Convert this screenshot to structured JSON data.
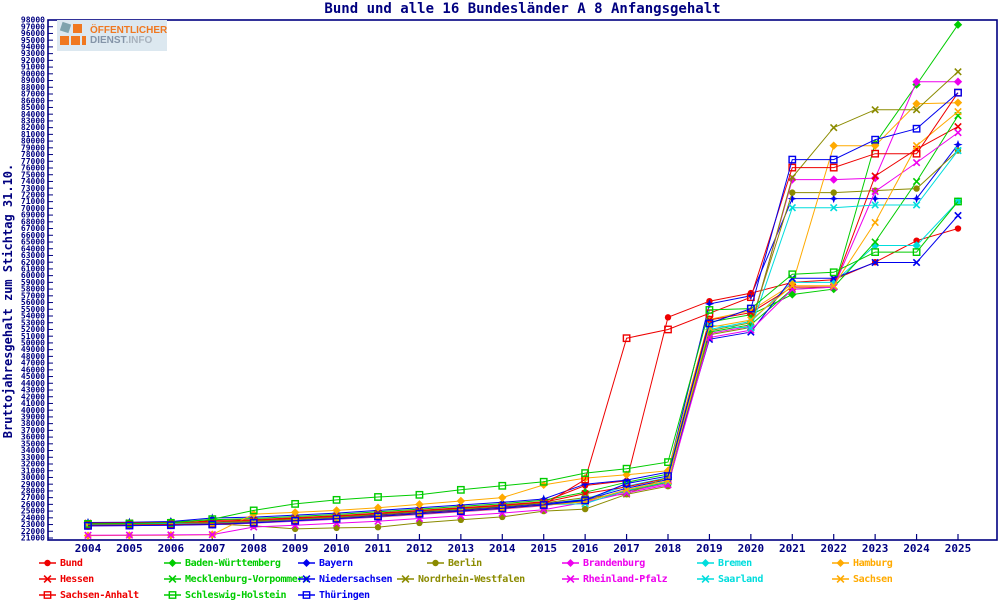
{
  "logo": {
    "line1": "ÖFFENTLICHER",
    "dienst": "DIENST",
    "info": ".INFO"
  },
  "chart_data": {
    "type": "line",
    "title": "Bund und alle 16 Bundesländer A 8 Anfangsgehalt",
    "xlabel": "",
    "ylabel": "Bruttojahresgehalt zum Stichtag 31.10.",
    "ylim": [
      21000,
      98000
    ],
    "ytick_step": 1000,
    "grid": false,
    "legend_position": "bottom",
    "x": [
      2004,
      2005,
      2006,
      2007,
      2008,
      2009,
      2010,
      2011,
      2012,
      2013,
      2014,
      2015,
      2016,
      2017,
      2018,
      2019,
      2020,
      2021,
      2022,
      2023,
      2024,
      2025
    ],
    "series": [
      {
        "name": "Bund",
        "color": "#ee0000",
        "marker": "circle",
        "values": [
          22900,
          22950,
          23100,
          23600,
          23700,
          24000,
          24300,
          24700,
          25100,
          25500,
          25900,
          26400,
          28800,
          29500,
          53800,
          56200,
          57400,
          59000,
          59400,
          62000,
          65200,
          67000
        ]
      },
      {
        "name": "Baden-Württemberg",
        "color": "#00cc00",
        "marker": "diamond",
        "values": [
          23200,
          23250,
          23400,
          23700,
          23900,
          24200,
          24500,
          24900,
          25300,
          25700,
          26100,
          26600,
          27800,
          29300,
          30500,
          53100,
          54200,
          57200,
          58000,
          79600,
          88400,
          97300
        ]
      },
      {
        "name": "Bayern",
        "color": "#0000ee",
        "marker": "star",
        "values": [
          23300,
          23350,
          23450,
          23970,
          24100,
          24400,
          24700,
          25100,
          25500,
          25900,
          26300,
          26800,
          29000,
          29600,
          30800,
          55800,
          57000,
          71450,
          71450,
          71450,
          71450,
          79480
        ]
      },
      {
        "name": "Berlin",
        "color": "#8b8b00",
        "marker": "circle",
        "values": [
          23000,
          23000,
          23050,
          23100,
          22800,
          22350,
          22500,
          22600,
          23240,
          23700,
          24130,
          25000,
          25300,
          27500,
          28700,
          51800,
          53000,
          72340,
          72340,
          72640,
          72940,
          78590
        ]
      },
      {
        "name": "Brandenburg",
        "color": "#ee00ee",
        "marker": "diamond",
        "values": [
          22800,
          22850,
          22900,
          23000,
          23200,
          23500,
          23800,
          24100,
          24500,
          24900,
          25300,
          25800,
          26600,
          27900,
          29100,
          51400,
          52500,
          74280,
          74280,
          74500,
          88830,
          88830
        ]
      },
      {
        "name": "Bremen",
        "color": "#00dddd",
        "marker": "diamond",
        "values": [
          23100,
          23100,
          23150,
          23200,
          23400,
          23700,
          24000,
          24300,
          24700,
          25100,
          25500,
          26000,
          26800,
          28700,
          30000,
          52000,
          53200,
          59000,
          59000,
          64480,
          64480,
          71020
        ]
      },
      {
        "name": "Hamburg",
        "color": "#ffaa00",
        "marker": "diamond",
        "values": [
          21350,
          21380,
          21420,
          21500,
          24560,
          24800,
          25100,
          25500,
          26000,
          26500,
          27000,
          28900,
          29900,
          30400,
          31000,
          53500,
          54800,
          58700,
          79320,
          79320,
          85550,
          85710
        ]
      },
      {
        "name": "Hessen",
        "color": "#ee0000",
        "marker": "x",
        "values": [
          23200,
          23250,
          23300,
          23400,
          23600,
          23900,
          24200,
          24600,
          25000,
          25400,
          25800,
          26300,
          27600,
          28600,
          29900,
          53400,
          54500,
          58300,
          58300,
          74800,
          78800,
          82150
        ]
      },
      {
        "name": "Mecklenburg-Vorpommern",
        "color": "#00cc00",
        "marker": "x",
        "values": [
          22900,
          22950,
          23000,
          23100,
          23300,
          23600,
          23900,
          24200,
          24600,
          25000,
          25400,
          25900,
          26500,
          28000,
          29300,
          51600,
          52700,
          58000,
          58300,
          65000,
          74000,
          83780
        ]
      },
      {
        "name": "Niedersachsen",
        "color": "#0000ee",
        "marker": "x",
        "values": [
          23000,
          23050,
          23100,
          23200,
          23400,
          23700,
          24000,
          24400,
          24800,
          25200,
          25600,
          26100,
          26700,
          28400,
          29700,
          50530,
          51600,
          59600,
          59600,
          61950,
          61950,
          68940
        ]
      },
      {
        "name": "Nordrhein-Westfalen",
        "color": "#8b8b00",
        "marker": "x",
        "values": [
          23100,
          23150,
          23200,
          23300,
          23500,
          23800,
          24100,
          24500,
          24900,
          25300,
          25700,
          26200,
          27000,
          27530,
          30100,
          51200,
          52300,
          74600,
          82000,
          84660,
          84660,
          90310
        ]
      },
      {
        "name": "Rheinland-Pfalz",
        "color": "#ee00ee",
        "marker": "x",
        "values": [
          21400,
          21430,
          21460,
          21500,
          22630,
          22900,
          23200,
          23500,
          23900,
          24300,
          24700,
          25200,
          26300,
          27700,
          28900,
          50800,
          51900,
          57950,
          58300,
          72500,
          76800,
          81260
        ]
      },
      {
        "name": "Saarland",
        "color": "#00dddd",
        "marker": "x",
        "values": [
          23000,
          23050,
          23100,
          23150,
          23350,
          23650,
          23950,
          24250,
          24650,
          25050,
          25450,
          25950,
          26100,
          28100,
          29400,
          52600,
          52200,
          70100,
          70100,
          70500,
          70500,
          78590
        ]
      },
      {
        "name": "Sachsen",
        "color": "#ffaa00",
        "marker": "x",
        "values": [
          22850,
          22900,
          22950,
          23050,
          23250,
          23550,
          23850,
          24150,
          24550,
          24950,
          25350,
          25850,
          26400,
          28200,
          29500,
          52300,
          53400,
          58500,
          58500,
          67900,
          79320,
          84380
        ]
      },
      {
        "name": "Sachsen-Anhalt",
        "color": "#ee0000",
        "marker": "square",
        "values": [
          22900,
          22950,
          23000,
          23100,
          23300,
          23600,
          23900,
          24250,
          24650,
          25050,
          25450,
          25950,
          29700,
          50700,
          52000,
          54400,
          56800,
          76060,
          76060,
          78130,
          78130,
          87200
        ]
      },
      {
        "name": "Schleswig-Holstein",
        "color": "#00cc00",
        "marker": "square",
        "values": [
          23100,
          23150,
          23250,
          23800,
          25100,
          26070,
          26670,
          27100,
          27420,
          28160,
          28760,
          29360,
          30650,
          31300,
          32280,
          54900,
          55100,
          60200,
          60500,
          63500,
          63500,
          71020
        ]
      },
      {
        "name": "Thüringen",
        "color": "#0000ee",
        "marker": "square",
        "values": [
          22800,
          22850,
          22900,
          23000,
          23250,
          23550,
          23850,
          24200,
          24600,
          25000,
          25400,
          25900,
          26600,
          29100,
          30200,
          52900,
          55100,
          77250,
          77250,
          80210,
          81840,
          87200
        ]
      }
    ],
    "legend_rows": [
      [
        0,
        1,
        2,
        3,
        4,
        5,
        6
      ],
      [
        7,
        8,
        9,
        10,
        11,
        12,
        13
      ],
      [
        14,
        15,
        16
      ]
    ],
    "legend_cols": [
      [
        47,
        172,
        306,
        435,
        570,
        705,
        840
      ],
      [
        47,
        172,
        306,
        405,
        570,
        705,
        840
      ],
      [
        47,
        172,
        306
      ]
    ],
    "legend_row_y": [
      557,
      573,
      589
    ]
  }
}
